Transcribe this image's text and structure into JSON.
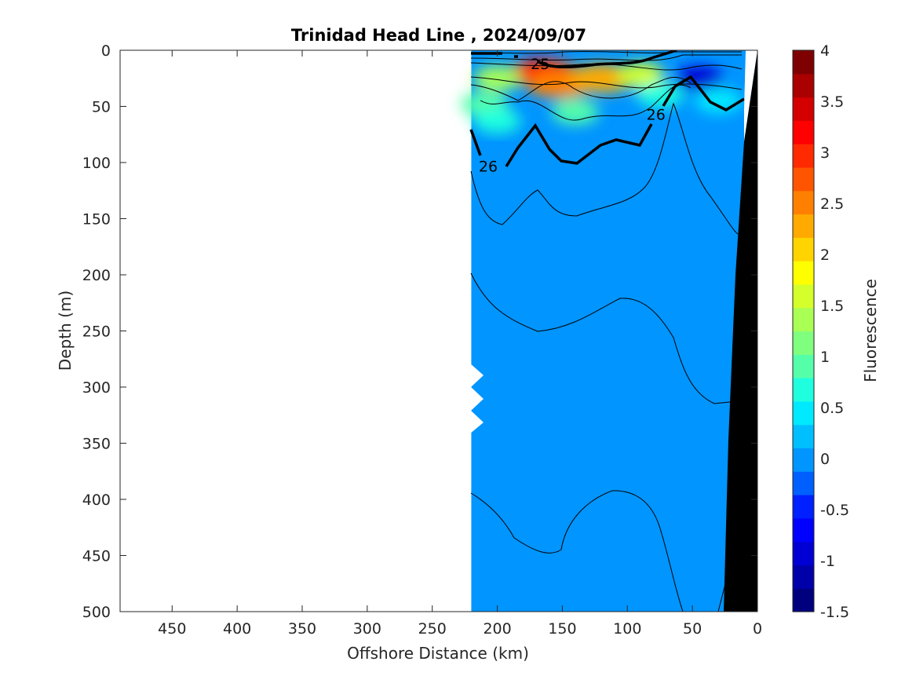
{
  "chart_data": {
    "type": "heatmap",
    "title": "Trinidad Head Line , 2024/09/07",
    "xlabel": "Offshore Distance (km)",
    "ylabel": "Depth (m)",
    "colorbar_label": "Fluorescence",
    "xlim": [
      490,
      0
    ],
    "ylim": [
      0,
      500
    ],
    "x_ticks": [
      450,
      400,
      350,
      300,
      250,
      200,
      150,
      100,
      50,
      0
    ],
    "y_ticks": [
      0,
      50,
      100,
      150,
      200,
      250,
      300,
      350,
      400,
      450,
      500
    ],
    "colorbar_ticks": [
      4,
      3.5,
      3,
      2.5,
      2,
      1.5,
      1,
      0.5,
      0,
      -0.5,
      -1,
      -1.5
    ],
    "colorbar_range": [
      -1.5,
      4
    ],
    "colormap": [
      "#00007f",
      "#0000aa",
      "#0000d4",
      "#0000ff",
      "#0020ff",
      "#0060ff",
      "#0095ff",
      "#00bfff",
      "#00eaff",
      "#1fffdf",
      "#55ffaa",
      "#80ff7f",
      "#aaff55",
      "#d4ff2b",
      "#ffff00",
      "#ffd400",
      "#ffaa00",
      "#ff8000",
      "#ff5500",
      "#ff2a00",
      "#ff0000",
      "#d40000",
      "#aa0000",
      "#7f0000"
    ],
    "data_extent_km": [
      220,
      0
    ],
    "background_value": 0.1,
    "patches": [
      {
        "x": 165,
        "y": 20,
        "value": 3.3
      },
      {
        "x": 152,
        "y": 30,
        "value": 2.5
      },
      {
        "x": 120,
        "y": 25,
        "value": 2.2
      },
      {
        "x": 90,
        "y": 22,
        "value": 1.5
      },
      {
        "x": 200,
        "y": 25,
        "value": 1.4
      },
      {
        "x": 210,
        "y": 48,
        "value": 0.9
      },
      {
        "x": 200,
        "y": 63,
        "value": 0.6
      },
      {
        "x": 140,
        "y": 55,
        "value": 0.9
      },
      {
        "x": 75,
        "y": 40,
        "value": 0.7
      },
      {
        "x": 45,
        "y": 25,
        "value": -0.9
      },
      {
        "x": 30,
        "y": 45,
        "value": 0.5
      }
    ],
    "contour_labels": [
      {
        "text": "25",
        "x": 167,
        "y": 12
      },
      {
        "text": "26",
        "x": 207,
        "y": 103
      },
      {
        "text": "26",
        "x": 78,
        "y": 57
      }
    ],
    "seafloor_color": "#000000"
  }
}
